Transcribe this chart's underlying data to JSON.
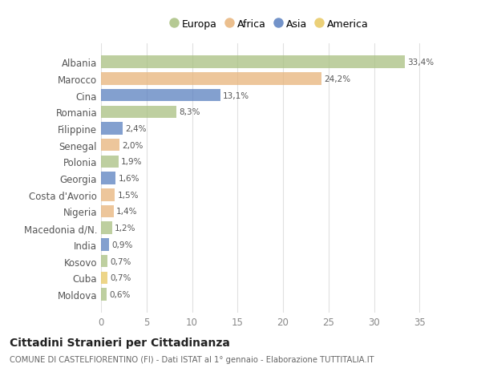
{
  "countries": [
    "Albania",
    "Marocco",
    "Cina",
    "Romania",
    "Filippine",
    "Senegal",
    "Polonia",
    "Georgia",
    "Costa d'Avorio",
    "Nigeria",
    "Macedonia d/N.",
    "India",
    "Kosovo",
    "Cuba",
    "Moldova"
  ],
  "values": [
    33.4,
    24.2,
    13.1,
    8.3,
    2.4,
    2.0,
    1.9,
    1.6,
    1.5,
    1.4,
    1.2,
    0.9,
    0.7,
    0.7,
    0.6
  ],
  "labels": [
    "33,4%",
    "24,2%",
    "13,1%",
    "8,3%",
    "2,4%",
    "2,0%",
    "1,9%",
    "1,6%",
    "1,5%",
    "1,4%",
    "1,2%",
    "0,9%",
    "0,7%",
    "0,7%",
    "0,6%"
  ],
  "colors": [
    "#a8c080",
    "#e8b47a",
    "#5a80c0",
    "#a8c080",
    "#5a80c0",
    "#e8b47a",
    "#a8c080",
    "#5a80c0",
    "#e8b47a",
    "#e8b47a",
    "#a8c080",
    "#5a80c0",
    "#a8c080",
    "#e8c860",
    "#a8c080"
  ],
  "legend_labels": [
    "Europa",
    "Africa",
    "Asia",
    "America"
  ],
  "legend_colors": [
    "#a8c080",
    "#e8b47a",
    "#5a80c0",
    "#e8c860"
  ],
  "title": "Cittadini Stranieri per Cittadinanza",
  "subtitle": "COMUNE DI CASTELFIORENTINO (FI) - Dati ISTAT al 1° gennaio - Elaborazione TUTTITALIA.IT",
  "xlim": [
    0,
    37
  ],
  "xticks": [
    0,
    5,
    10,
    15,
    20,
    25,
    30,
    35
  ],
  "bg_color": "#ffffff",
  "plot_bg_color": "#ffffff",
  "grid_color": "#e0e0e0",
  "bar_height": 0.75,
  "bar_alpha": 0.75
}
